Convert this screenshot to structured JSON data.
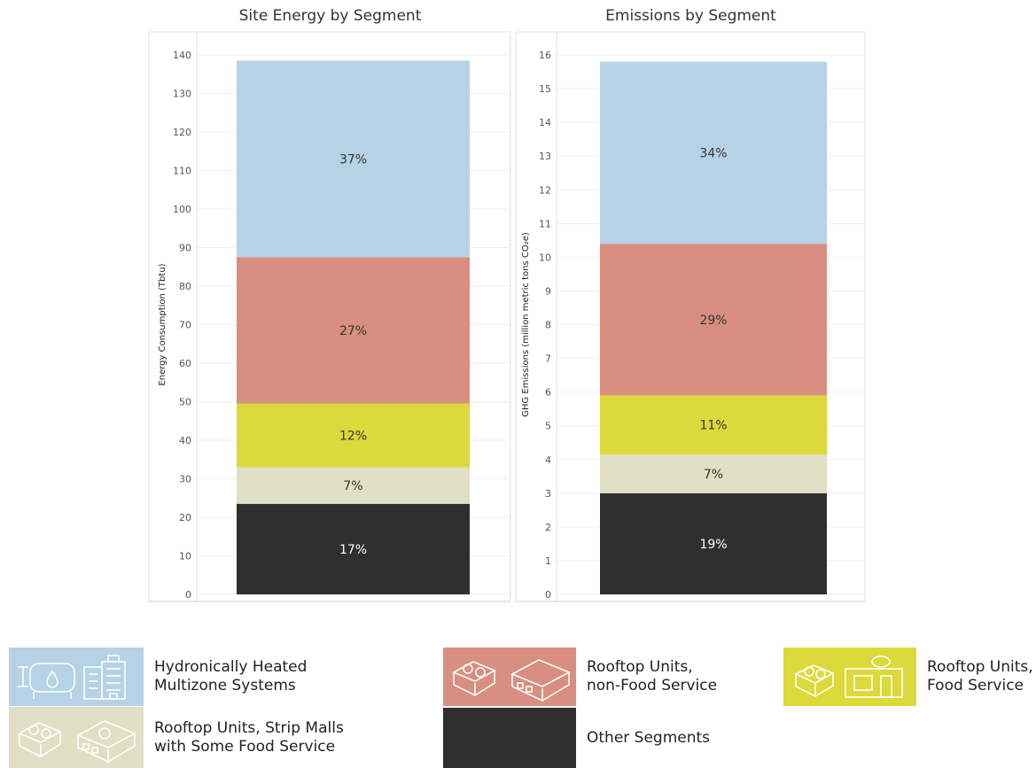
{
  "chart_data": [
    {
      "type": "bar",
      "stacked": true,
      "title": "Site Energy by Segment",
      "ylabel": "Energy Consumption (Tbtu)",
      "ylim": [
        0,
        140
      ],
      "yticks": [
        0,
        10,
        20,
        30,
        40,
        50,
        60,
        70,
        80,
        90,
        100,
        110,
        120,
        130,
        140
      ],
      "series": [
        {
          "name": "Other Segments",
          "value": 23.5,
          "label": "17%",
          "color": "#2f2f2f",
          "label_color": "#ffffff"
        },
        {
          "name": "Rooftop Units, Strip Malls with Some Food Service",
          "value": 9.5,
          "label": "7%",
          "color": "#dfe0c4",
          "label_color": "#333333"
        },
        {
          "name": "Rooftop Units, Food Service",
          "value": 16.5,
          "label": "12%",
          "color": "#dcd93a",
          "label_color": "#333333"
        },
        {
          "name": "Rooftop Units, non-Food Service",
          "value": 38,
          "label": "27%",
          "color": "#d88f80",
          "label_color": "#333333"
        },
        {
          "name": "Hydronically Heated Multizone Systems",
          "value": 51,
          "label": "37%",
          "color": "#b6d2e6",
          "label_color": "#333333"
        }
      ]
    },
    {
      "type": "bar",
      "stacked": true,
      "title": "Emissions by Segment",
      "ylabel": "GHG Emissions (million metric tons CO₂e)",
      "ylim": [
        0,
        16
      ],
      "yticks": [
        0,
        1,
        2,
        3,
        4,
        5,
        6,
        7,
        8,
        9,
        10,
        11,
        12,
        13,
        14,
        15,
        16
      ],
      "series": [
        {
          "name": "Other Segments",
          "value": 3.0,
          "label": "19%",
          "color": "#2f2f2f",
          "label_color": "#ffffff"
        },
        {
          "name": "Rooftop Units, Strip Malls with Some Food Service",
          "value": 1.15,
          "label": "7%",
          "color": "#dfe0c4",
          "label_color": "#333333"
        },
        {
          "name": "Rooftop Units, Food Service",
          "value": 1.75,
          "label": "11%",
          "color": "#dcd93a",
          "label_color": "#333333"
        },
        {
          "name": "Rooftop Units, non-Food Service",
          "value": 4.5,
          "label": "29%",
          "color": "#d88f80",
          "label_color": "#333333"
        },
        {
          "name": "Hydronically Heated Multizone Systems",
          "value": 5.4,
          "label": "34%",
          "color": "#b6d2e6",
          "label_color": "#333333"
        }
      ]
    }
  ],
  "legend": [
    {
      "label": "Hydronically Heated\nMultizone Systems",
      "color": "#b6d2e6",
      "icon": "boiler-building-icon"
    },
    {
      "label": "Rooftop Units,\nnon-Food Service",
      "color": "#d88f80",
      "icon": "rooftop-unit-building-icon"
    },
    {
      "label": "Rooftop Units,\nFood Service",
      "color": "#dcd93a",
      "icon": "rooftop-unit-restaurant-icon"
    },
    {
      "label": "Rooftop Units, Strip Malls\nwith Some Food Service",
      "color": "#dfe0c4",
      "icon": "rooftop-unit-strip-mall-icon"
    },
    {
      "label": "Other  Segments",
      "color": "#2f2f2f",
      "icon": ""
    }
  ]
}
